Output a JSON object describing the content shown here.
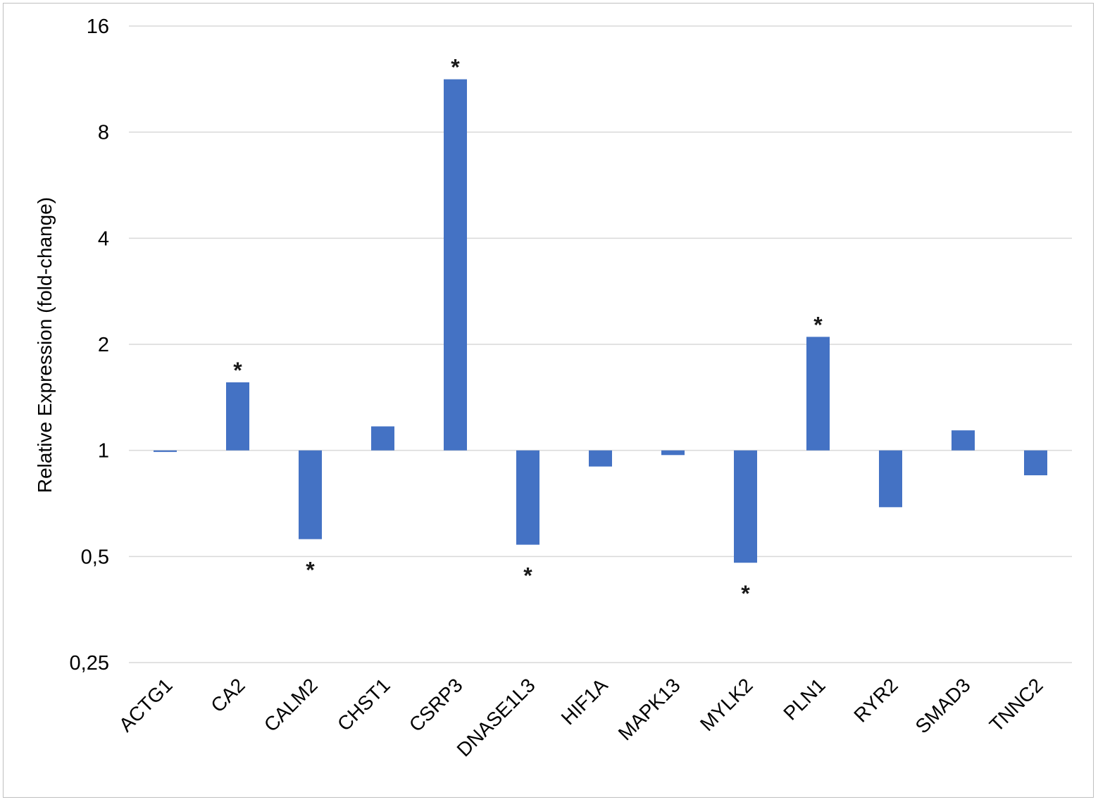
{
  "chart_data": {
    "type": "bar",
    "title": "",
    "xlabel": "",
    "ylabel": "Relative Expression (fold-change)",
    "y_scale": "log2",
    "ylim": [
      0.25,
      16
    ],
    "y_ticks": [
      0.25,
      0.5,
      1,
      2,
      4,
      8,
      16
    ],
    "y_tick_labels": [
      "0,25",
      "0,5",
      "1",
      "2",
      "4",
      "8",
      "16"
    ],
    "baseline": 1,
    "grid": true,
    "legend": "none",
    "bar_color": "#4472c4",
    "categories": [
      "ACTG1",
      "CA2",
      "CALM2",
      "CHST1",
      "CSRP3",
      "DNASE1L3",
      "HIF1A",
      "MAPK13",
      "MYLK2",
      "PLN1",
      "RYR2",
      "SMAD3",
      "TNNC2"
    ],
    "values": [
      0.99,
      1.56,
      0.56,
      1.17,
      11.3,
      0.54,
      0.9,
      0.97,
      0.48,
      2.1,
      0.69,
      1.14,
      0.85
    ],
    "significant": [
      false,
      true,
      true,
      false,
      true,
      true,
      false,
      false,
      true,
      true,
      false,
      false,
      false
    ],
    "significance_marker": "*"
  }
}
